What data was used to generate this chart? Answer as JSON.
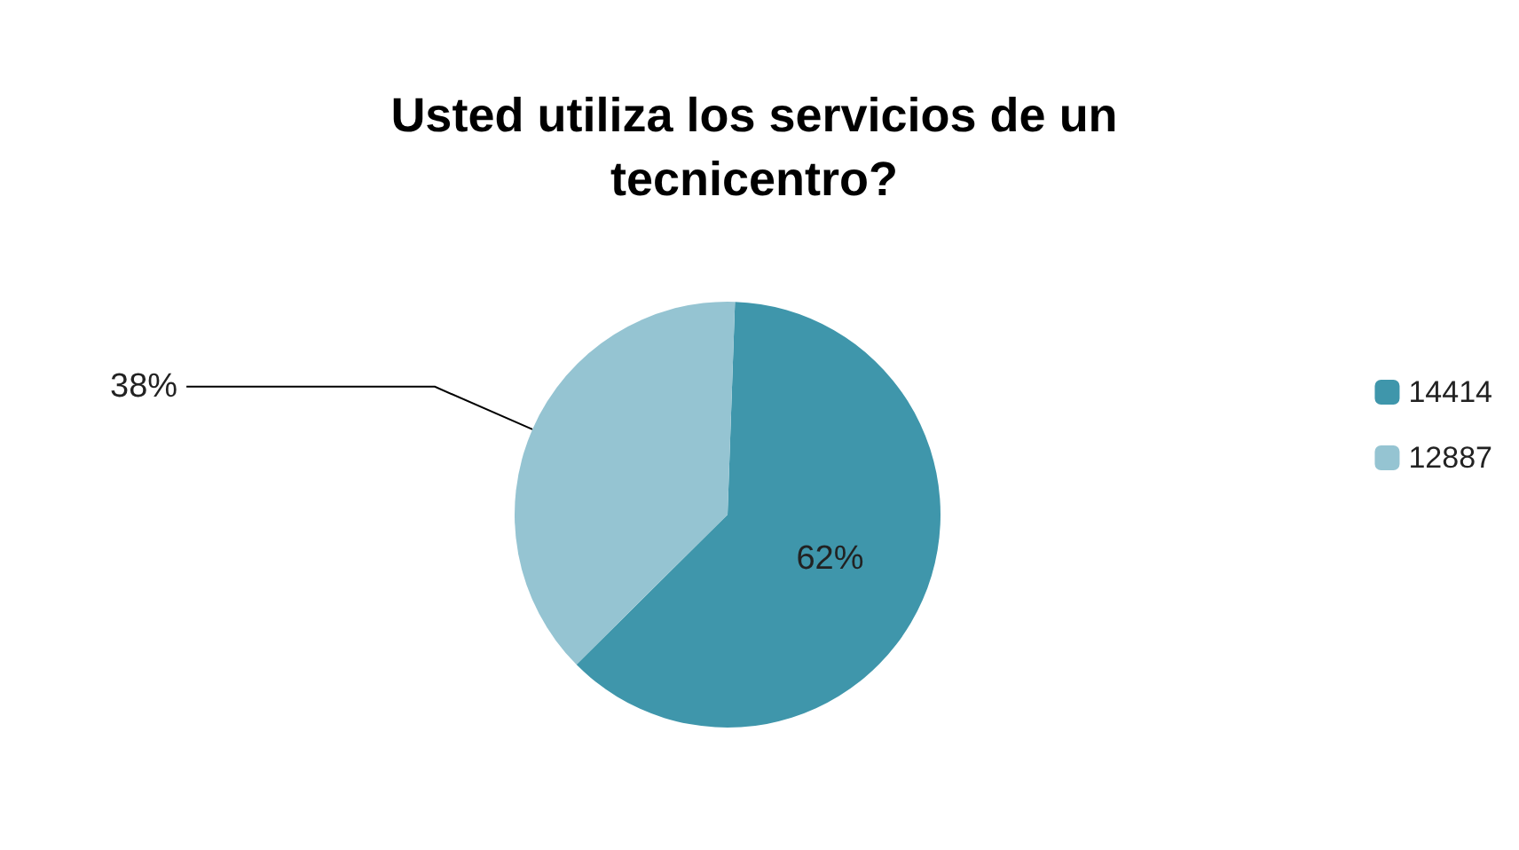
{
  "chart_data": {
    "type": "pie",
    "title": "Usted utiliza los servicios de un\ntecnicentro?",
    "categories": [
      "14414",
      "12887"
    ],
    "values": [
      62,
      38
    ],
    "colors": [
      "#3f96ab",
      "#95c4d2"
    ],
    "value_labels": [
      "62%",
      "38%"
    ],
    "legend": "right"
  }
}
